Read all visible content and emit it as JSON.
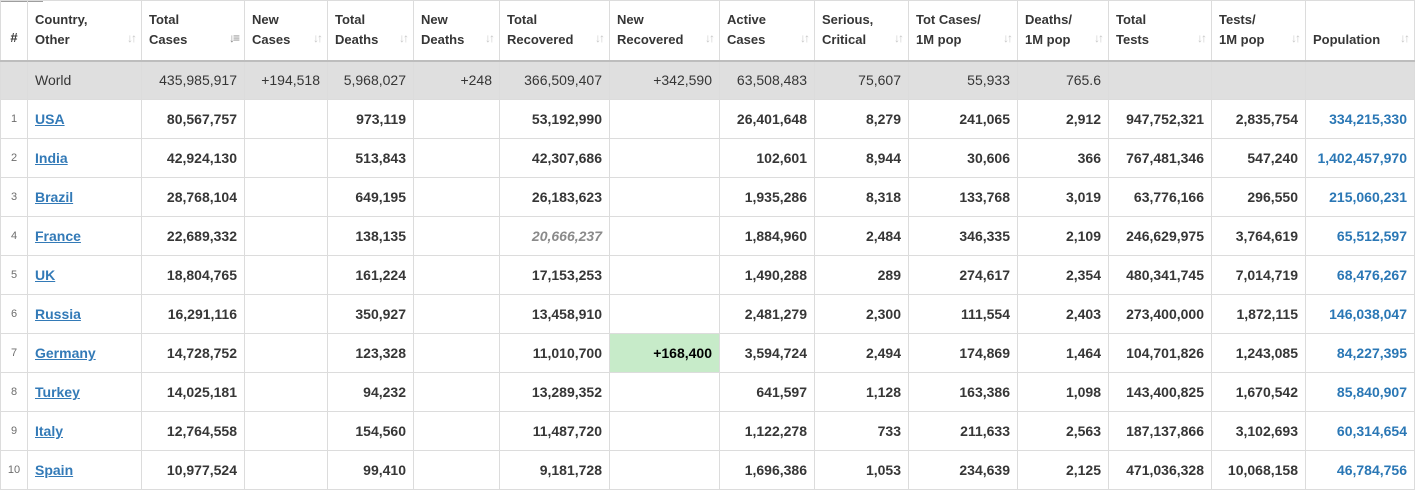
{
  "headers": [
    {
      "l1": "#",
      "l2": ""
    },
    {
      "l1": "Country,",
      "l2": "Other"
    },
    {
      "l1": "Total",
      "l2": "Cases"
    },
    {
      "l1": "New",
      "l2": "Cases"
    },
    {
      "l1": "Total",
      "l2": "Deaths"
    },
    {
      "l1": "New",
      "l2": "Deaths"
    },
    {
      "l1": "Total",
      "l2": "Recovered"
    },
    {
      "l1": "New",
      "l2": "Recovered"
    },
    {
      "l1": "Active",
      "l2": "Cases"
    },
    {
      "l1": "Serious,",
      "l2": "Critical"
    },
    {
      "l1": "Tot Cases/",
      "l2": "1M pop"
    },
    {
      "l1": "Deaths/",
      "l2": "1M pop"
    },
    {
      "l1": "Total",
      "l2": "Tests"
    },
    {
      "l1": "Tests/",
      "l2": "1M pop"
    },
    {
      "l1": "Population",
      "l2": ""
    }
  ],
  "world": {
    "country": "World",
    "total_cases": "435,985,917",
    "new_cases": "+194,518",
    "total_deaths": "5,968,027",
    "new_deaths": "+248",
    "total_recovered": "366,509,407",
    "new_recovered": "+342,590",
    "active_cases": "63,508,483",
    "serious": "75,607",
    "cases_per_1m": "55,933",
    "deaths_per_1m": "765.6",
    "total_tests": "",
    "tests_per_1m": "",
    "population": ""
  },
  "rows": [
    {
      "rank": "1",
      "country": "USA",
      "total_cases": "80,567,757",
      "new_cases": "",
      "total_deaths": "973,119",
      "new_deaths": "",
      "total_recovered": "53,192,990",
      "new_recovered": "",
      "active_cases": "26,401,648",
      "serious": "8,279",
      "cases_per_1m": "241,065",
      "deaths_per_1m": "2,912",
      "total_tests": "947,752,321",
      "tests_per_1m": "2,835,754",
      "population": "334,215,330"
    },
    {
      "rank": "2",
      "country": "India",
      "total_cases": "42,924,130",
      "new_cases": "",
      "total_deaths": "513,843",
      "new_deaths": "",
      "total_recovered": "42,307,686",
      "new_recovered": "",
      "active_cases": "102,601",
      "serious": "8,944",
      "cases_per_1m": "30,606",
      "deaths_per_1m": "366",
      "total_tests": "767,481,346",
      "tests_per_1m": "547,240",
      "population": "1,402,457,970"
    },
    {
      "rank": "3",
      "country": "Brazil",
      "total_cases": "28,768,104",
      "new_cases": "",
      "total_deaths": "649,195",
      "new_deaths": "",
      "total_recovered": "26,183,623",
      "new_recovered": "",
      "active_cases": "1,935,286",
      "serious": "8,318",
      "cases_per_1m": "133,768",
      "deaths_per_1m": "3,019",
      "total_tests": "63,776,166",
      "tests_per_1m": "296,550",
      "population": "215,060,231"
    },
    {
      "rank": "4",
      "country": "France",
      "total_cases": "22,689,332",
      "new_cases": "",
      "total_deaths": "138,135",
      "new_deaths": "",
      "total_recovered": "20,666,237",
      "new_recovered": "",
      "active_cases": "1,884,960",
      "serious": "2,484",
      "cases_per_1m": "346,335",
      "deaths_per_1m": "2,109",
      "total_tests": "246,629,975",
      "tests_per_1m": "3,764,619",
      "population": "65,512,597"
    },
    {
      "rank": "5",
      "country": "UK",
      "total_cases": "18,804,765",
      "new_cases": "",
      "total_deaths": "161,224",
      "new_deaths": "",
      "total_recovered": "17,153,253",
      "new_recovered": "",
      "active_cases": "1,490,288",
      "serious": "289",
      "cases_per_1m": "274,617",
      "deaths_per_1m": "2,354",
      "total_tests": "480,341,745",
      "tests_per_1m": "7,014,719",
      "population": "68,476,267"
    },
    {
      "rank": "6",
      "country": "Russia",
      "total_cases": "16,291,116",
      "new_cases": "",
      "total_deaths": "350,927",
      "new_deaths": "",
      "total_recovered": "13,458,910",
      "new_recovered": "",
      "active_cases": "2,481,279",
      "serious": "2,300",
      "cases_per_1m": "111,554",
      "deaths_per_1m": "2,403",
      "total_tests": "273,400,000",
      "tests_per_1m": "1,872,115",
      "population": "146,038,047"
    },
    {
      "rank": "7",
      "country": "Germany",
      "total_cases": "14,728,752",
      "new_cases": "",
      "total_deaths": "123,328",
      "new_deaths": "",
      "total_recovered": "11,010,700",
      "new_recovered": "+168,400",
      "active_cases": "3,594,724",
      "serious": "2,494",
      "cases_per_1m": "174,869",
      "deaths_per_1m": "1,464",
      "total_tests": "104,701,826",
      "tests_per_1m": "1,243,085",
      "population": "84,227,395"
    },
    {
      "rank": "8",
      "country": "Turkey",
      "total_cases": "14,025,181",
      "new_cases": "",
      "total_deaths": "94,232",
      "new_deaths": "",
      "total_recovered": "13,289,352",
      "new_recovered": "",
      "active_cases": "641,597",
      "serious": "1,128",
      "cases_per_1m": "163,386",
      "deaths_per_1m": "1,098",
      "total_tests": "143,400,825",
      "tests_per_1m": "1,670,542",
      "population": "85,840,907"
    },
    {
      "rank": "9",
      "country": "Italy",
      "total_cases": "12,764,558",
      "new_cases": "",
      "total_deaths": "154,560",
      "new_deaths": "",
      "total_recovered": "11,487,720",
      "new_recovered": "",
      "active_cases": "1,122,278",
      "serious": "733",
      "cases_per_1m": "211,633",
      "deaths_per_1m": "2,563",
      "total_tests": "187,137,866",
      "tests_per_1m": "3,102,693",
      "population": "60,314,654"
    },
    {
      "rank": "10",
      "country": "Spain",
      "total_cases": "10,977,524",
      "new_cases": "",
      "total_deaths": "99,410",
      "new_deaths": "",
      "total_recovered": "9,181,728",
      "new_recovered": "",
      "active_cases": "1,696,386",
      "serious": "1,053",
      "cases_per_1m": "234,639",
      "deaths_per_1m": "2,125",
      "total_tests": "471,036,328",
      "tests_per_1m": "10,068,158",
      "population": "46,784,756"
    }
  ],
  "colors": {
    "link": "#337ab7",
    "population": "#2a77b5",
    "world_bg": "#dfdfdf",
    "highlight_green": "#c7ebc9"
  },
  "sort_icon": "sort-arrows-icon",
  "sort_active_icon": "sort-descending-icon"
}
